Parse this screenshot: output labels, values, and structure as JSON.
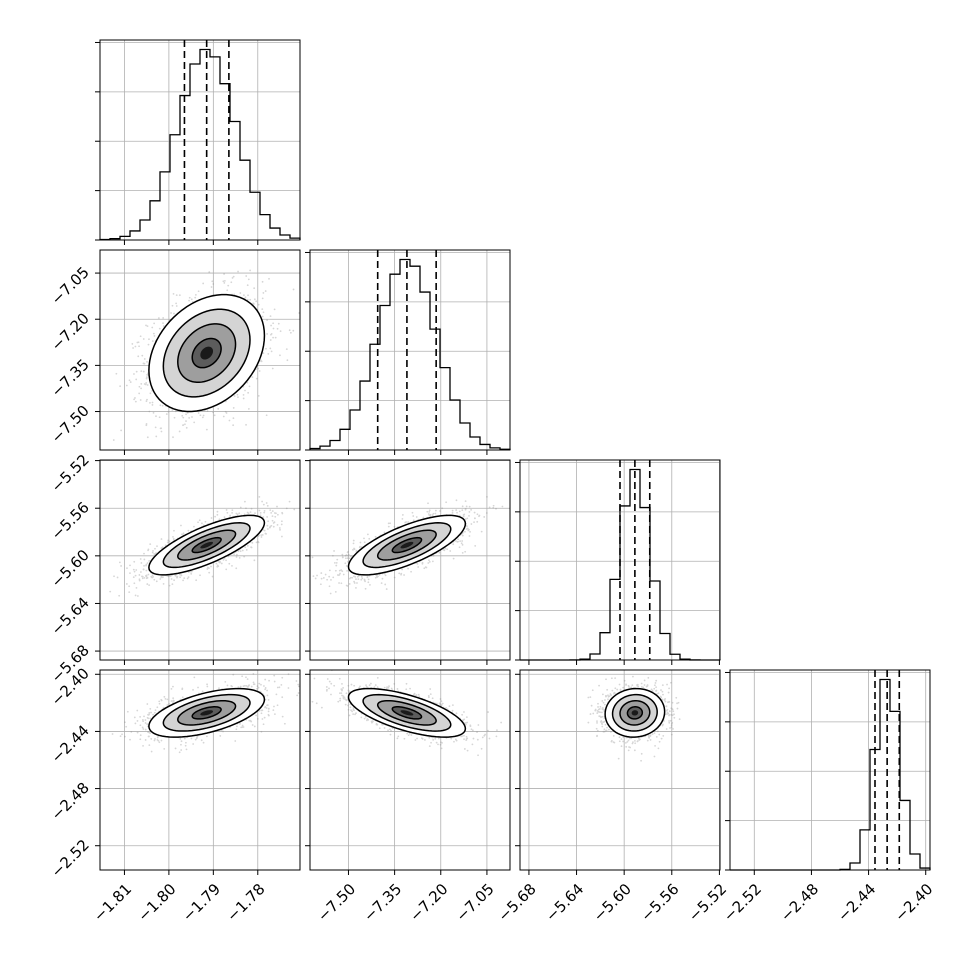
{
  "chart_data": {
    "type": "corner",
    "parameters": [
      {
        "mean": -1.7915,
        "sd": 0.0065,
        "range": [
          -1.8155,
          -1.7705
        ],
        "ticks": [
          "-1.81",
          "-1.80",
          "-1.79",
          "-1.78"
        ],
        "tick_values": [
          -1.81,
          -1.8,
          -1.79,
          -1.78
        ],
        "quantiles": [
          -1.7965,
          -1.7915,
          -1.7865
        ]
      },
      {
        "mean": -7.31,
        "sd": 0.095,
        "range": [
          -7.625,
          -6.975
        ],
        "ticks": [
          "-7.50",
          "-7.35",
          "-7.20",
          "-7.05"
        ],
        "tick_values": [
          -7.5,
          -7.35,
          -7.2,
          -7.05
        ],
        "quantiles": [
          -7.405,
          -7.31,
          -7.215
        ]
      },
      {
        "mean": -5.591,
        "sd": 0.0125,
        "range": [
          -5.6875,
          -5.5195
        ],
        "ticks": [
          "-5.68",
          "-5.64",
          "-5.60",
          "-5.56",
          "-5.52"
        ],
        "tick_values": [
          -5.68,
          -5.64,
          -5.6,
          -5.56,
          -5.52
        ],
        "quantiles": [
          -5.6035,
          -5.591,
          -5.5785
        ]
      },
      {
        "mean": -2.427,
        "sd": 0.0085,
        "range": [
          -2.537,
          -2.397
        ],
        "ticks": [
          "-2.52",
          "-2.48",
          "-2.44",
          "-2.40"
        ],
        "tick_values": [
          -2.52,
          -2.48,
          -2.44,
          -2.4
        ],
        "quantiles": [
          -2.4355,
          -2.427,
          -2.4185
        ]
      }
    ],
    "correlations": [
      {
        "i": 1,
        "j": 0,
        "rho": 0.3
      },
      {
        "i": 2,
        "j": 0,
        "rho": 0.75
      },
      {
        "i": 2,
        "j": 1,
        "rho": 0.72
      },
      {
        "i": 3,
        "j": 0,
        "rho": 0.55
      },
      {
        "i": 3,
        "j": 1,
        "rho": -0.65
      },
      {
        "i": 3,
        "j": 2,
        "rho": 0.05
      }
    ],
    "histogram_bins": 20,
    "histogram_yticks": 4,
    "contour_levels_sigma": [
      0.5,
      1.0,
      1.5,
      2.0
    ],
    "grid": true,
    "title": "",
    "legend": "none"
  }
}
